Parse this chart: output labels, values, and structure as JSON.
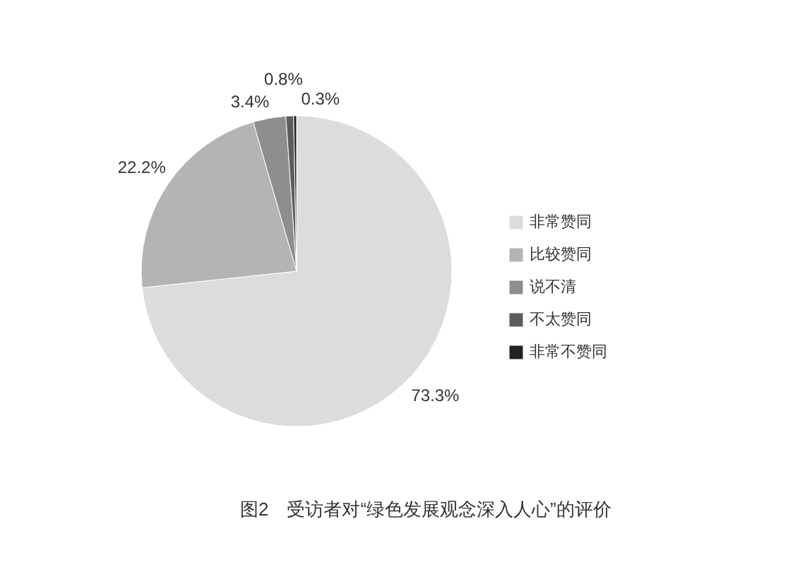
{
  "chart_data": {
    "type": "pie",
    "title": "图2　受访者对“绿色发展观念深入人心”的评价",
    "categories": [
      "非常赞同",
      "比较赞同",
      "说不清",
      "不太赞同",
      "非常不赞同"
    ],
    "values": [
      73.3,
      22.2,
      3.4,
      0.8,
      0.3
    ],
    "value_labels": [
      "73.3%",
      "22.2%",
      "3.4%",
      "0.8%",
      "0.3%"
    ],
    "colors": [
      "#dcdcdc",
      "#b4b4b4",
      "#8e8e8e",
      "#5c5c5c",
      "#222222"
    ],
    "legend": "right"
  }
}
